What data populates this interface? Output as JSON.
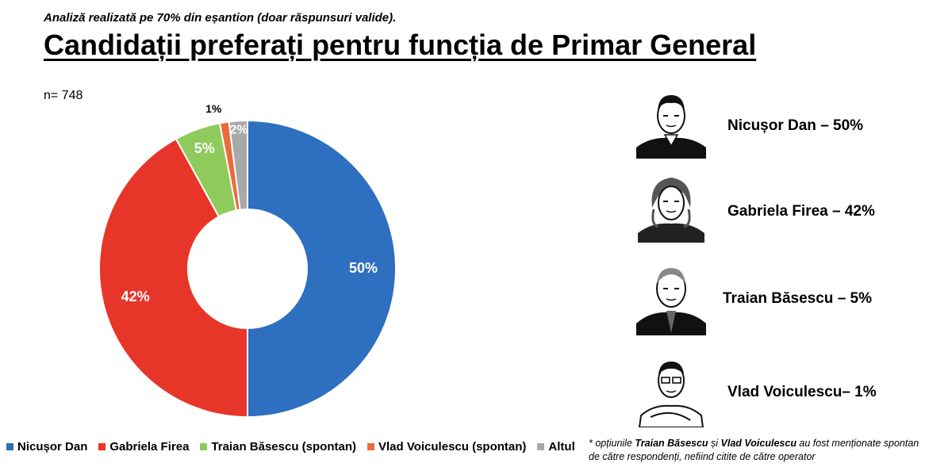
{
  "subtitle": "Analiză realizată pe 70% din eșantion (doar răspunsuri valide).",
  "title": "Candidații preferați pentru funcția de Primar General",
  "sample_label": "n= 748",
  "chart_data": {
    "type": "pie",
    "donut": true,
    "categories": [
      "Nicușor Dan",
      "Gabriela Firea",
      "Traian Băsescu (spontan)",
      "Vlad Voiculescu (spontan)",
      "Altul"
    ],
    "values": [
      50,
      42,
      5,
      1,
      2
    ],
    "data_labels": [
      "50%",
      "42%",
      "5%",
      "1%",
      "2%"
    ],
    "colors": [
      "#2E6FBF",
      "#E8352A",
      "#8FCB5C",
      "#EC6A3C",
      "#A9A9A9"
    ],
    "legend_position": "bottom"
  },
  "candidates": [
    {
      "label": "Nicușor Dan – 50%",
      "icon": "portrait-nicusor-dan"
    },
    {
      "label": "Gabriela Firea – 42%",
      "icon": "portrait-gabriela-firea"
    },
    {
      "label": "Traian Băsescu – 5%",
      "icon": "portrait-traian-basescu"
    },
    {
      "label": "Vlad Voiculescu– 1%",
      "icon": "portrait-vlad-voiculescu"
    }
  ],
  "footnote": {
    "star": "* opțiunile ",
    "name1": "Traian Băsescu",
    "and": " și ",
    "name2": "Vlad Voiculescu",
    "rest1": " au fost menționate spontan",
    "line2": "de către respondenți, nefiind citite de către operator"
  }
}
